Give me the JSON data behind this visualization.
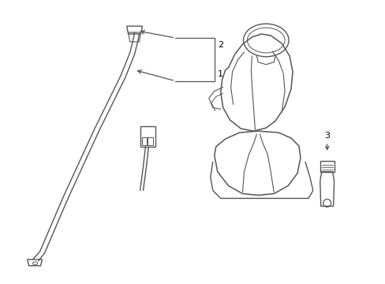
{
  "background_color": "#ffffff",
  "line_color": "#555555",
  "text_color": "#000000",
  "fig_width": 4.89,
  "fig_height": 3.6,
  "dpi": 100
}
